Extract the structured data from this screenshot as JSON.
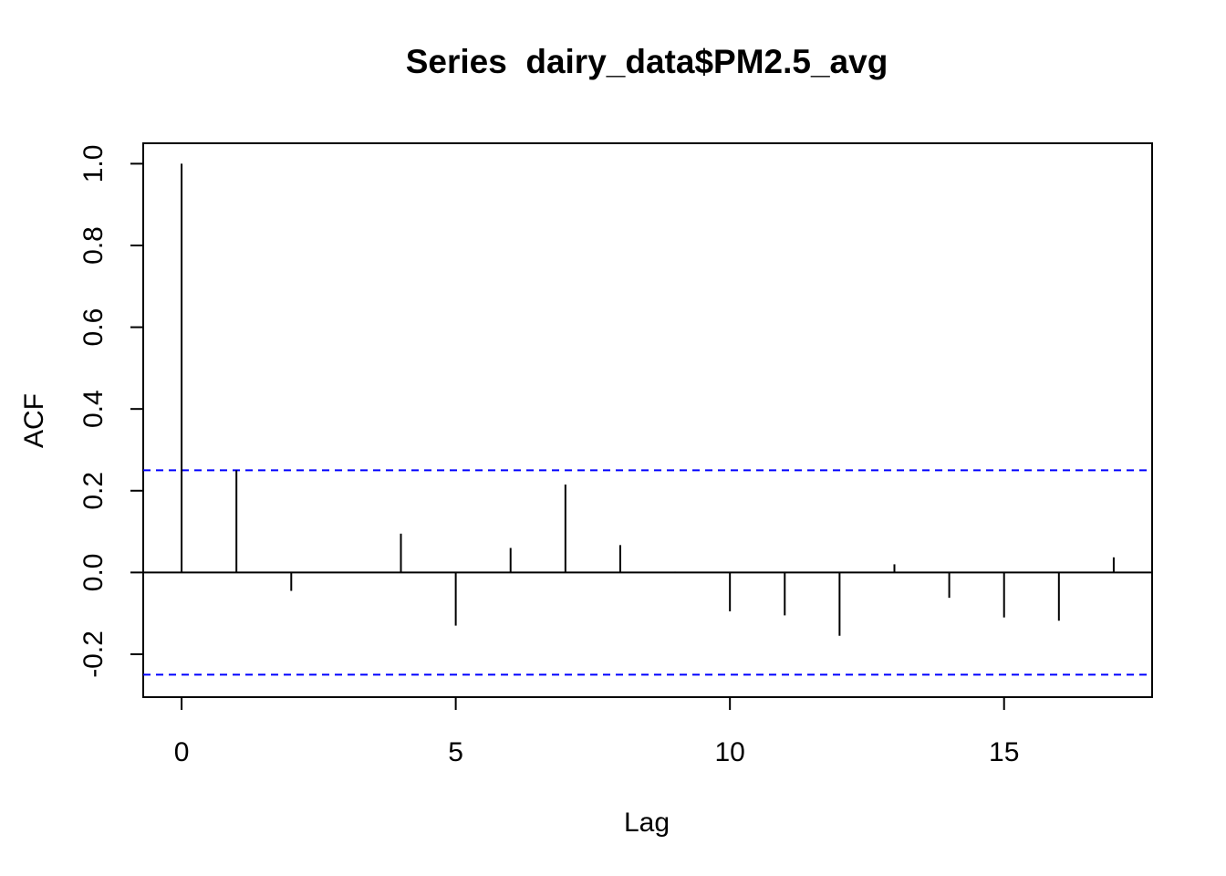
{
  "chart_data": {
    "type": "bar",
    "title": "Series  dairy_data$PM2.5_avg",
    "xlabel": "Lag",
    "ylabel": "ACF",
    "xlim": [
      -0.7,
      17.7
    ],
    "ylim": [
      -0.305,
      1.05
    ],
    "x_ticks": [
      0,
      5,
      10,
      15
    ],
    "x_tick_labels": [
      "0",
      "5",
      "10",
      "15"
    ],
    "y_ticks": [
      -0.2,
      0,
      0.2,
      0.4,
      0.6,
      0.8,
      1
    ],
    "y_tick_labels": [
      "-0.2",
      "0.0",
      "0.2",
      "0.4",
      "0.6",
      "0.8",
      "1.0"
    ],
    "lags": [
      0,
      1,
      2,
      3,
      4,
      5,
      6,
      7,
      8,
      9,
      10,
      11,
      12,
      13,
      14,
      15,
      16,
      17
    ],
    "acf": [
      1.0,
      0.25,
      -0.045,
      0.001,
      0.095,
      -0.13,
      0.06,
      0.215,
      0.067,
      0.002,
      -0.095,
      -0.105,
      -0.155,
      0.02,
      -0.062,
      -0.11,
      -0.118,
      0.037
    ],
    "confidence_bound": 0.25,
    "colors": {
      "spikes": "#000000",
      "zero_line": "#000000",
      "confidence": "#0000ff"
    },
    "grid": false
  }
}
